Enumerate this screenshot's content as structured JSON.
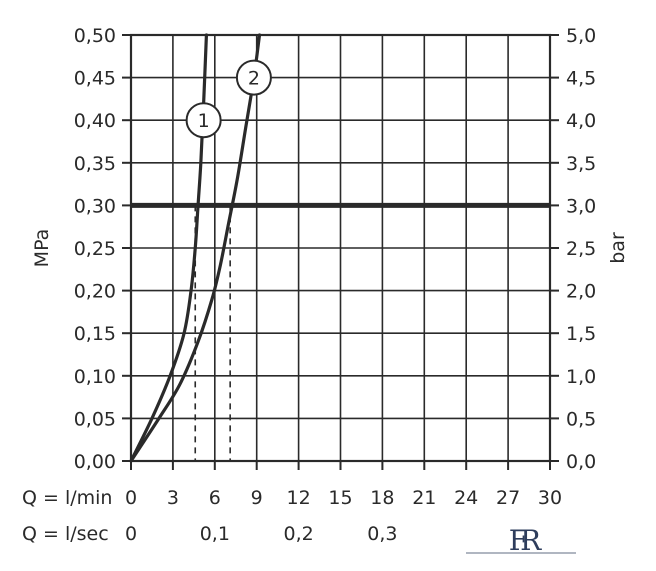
{
  "chart_data": {
    "type": "line",
    "left_axis": {
      "label": "MPa",
      "ylim": [
        0,
        0.5
      ],
      "ticks": [
        0,
        0.05,
        0.1,
        0.15,
        0.2,
        0.25,
        0.3,
        0.35,
        0.4,
        0.45,
        0.5
      ],
      "tick_labels": [
        "0,00",
        "0,05",
        "0,10",
        "0,15",
        "0,20",
        "0,25",
        "0,30",
        "0,35",
        "0,40",
        "0,45",
        "0,50"
      ]
    },
    "right_axis": {
      "label": "bar",
      "ylim": [
        0,
        5
      ],
      "ticks": [
        0,
        0.5,
        1,
        1.5,
        2,
        2.5,
        3,
        3.5,
        4,
        4.5,
        5
      ],
      "tick_labels": [
        "0,0",
        "0,5",
        "1,0",
        "1,5",
        "2,0",
        "2,5",
        "3,0",
        "3,5",
        "4,0",
        "4,5",
        "5,0"
      ]
    },
    "x_axis": {
      "row_label": "Q = l/min",
      "xlim": [
        0,
        30
      ],
      "ticks": [
        0,
        3,
        6,
        9,
        12,
        15,
        18,
        21,
        24,
        27,
        30
      ],
      "tick_labels": [
        "0",
        "3",
        "6",
        "9",
        "12",
        "15",
        "18",
        "21",
        "24",
        "27",
        "30"
      ]
    },
    "x_axis_secondary": {
      "row_label": "Q = l/sec",
      "ticks_lmin": [
        0,
        6,
        12,
        18
      ],
      "tick_labels": [
        "0",
        "0,1",
        "0,2",
        "0,3"
      ]
    },
    "grid": true,
    "series": [
      {
        "name": "1",
        "x": [
          0,
          1.5,
          2.8,
          3.8,
          4.3,
          4.6,
          4.8,
          5.0,
          5.2,
          5.4
        ],
        "y": [
          0,
          0.05,
          0.1,
          0.15,
          0.2,
          0.25,
          0.3,
          0.35,
          0.42,
          0.5
        ]
      },
      {
        "name": "2",
        "x": [
          0,
          2.0,
          3.5,
          4.8,
          5.8,
          6.4,
          7.0,
          7.6,
          8.2,
          8.8,
          9.2
        ],
        "y": [
          0,
          0.05,
          0.09,
          0.14,
          0.19,
          0.23,
          0.28,
          0.33,
          0.39,
          0.45,
          0.5
        ]
      }
    ],
    "reference_line": {
      "y": 0.3
    },
    "drop_lines": [
      {
        "series": "1",
        "x": 4.6,
        "y": 0.3
      },
      {
        "series": "2",
        "x": 7.1,
        "y": 0.3
      }
    ],
    "curve_labels": [
      {
        "text": "1",
        "x": 5.2,
        "y": 0.4
      },
      {
        "text": "2",
        "x": 8.8,
        "y": 0.45
      }
    ]
  },
  "logo": {
    "text": "FR"
  }
}
